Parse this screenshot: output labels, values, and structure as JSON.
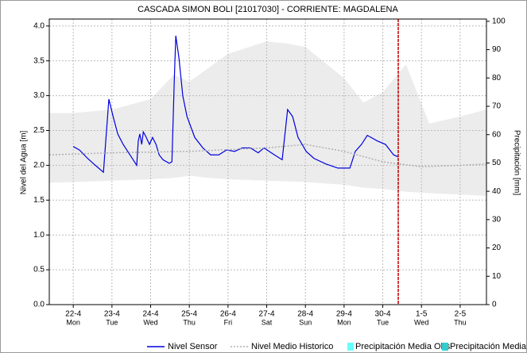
{
  "chart_data": {
    "type": "line",
    "title": "CASCADA SIMON BOLI [21017030] - CORRIENTE: MAGDALENA",
    "ylabel": "Nivel del Agua [m]",
    "y2label": "Precipitación [mm]",
    "xlim": [
      -0.62,
      10.68
    ],
    "xticks": [
      {
        "value": 0,
        "label": "22-4"
      },
      {
        "value": 1,
        "label": "23-4"
      },
      {
        "value": 2,
        "label": "24-4"
      },
      {
        "value": 3,
        "label": "25-4"
      },
      {
        "value": 4,
        "label": "26-4"
      },
      {
        "value": 5,
        "label": "27-4"
      },
      {
        "value": 6,
        "label": "28-4"
      },
      {
        "value": 7,
        "label": "29-4"
      },
      {
        "value": 8,
        "label": "30-4"
      },
      {
        "value": 9,
        "label": "1-5"
      },
      {
        "value": 10,
        "label": "2-5"
      }
    ],
    "xtick_days": [
      "Mon",
      "Tue",
      "Wed",
      "Thu",
      "Fri",
      "Sat",
      "Sun",
      "Mon",
      "Tue",
      "Wed",
      "Thu"
    ],
    "ylim": [
      0,
      4.1
    ],
    "yticks": [
      {
        "value": 0,
        "label": "0.0"
      },
      0.5,
      {
        "value": 1,
        "label": "1.0"
      },
      1.5,
      {
        "value": 2,
        "label": "2.0"
      },
      2.5,
      {
        "value": 3,
        "label": "3.0"
      },
      3.5,
      {
        "value": 4,
        "label": "4.0"
      }
    ],
    "y2lim": [
      0,
      100.8
    ],
    "y2ticks": [
      0,
      10,
      20,
      30,
      40,
      50,
      60,
      70,
      80,
      90,
      100
    ],
    "grid": true,
    "marker_x": 8.4,
    "marker_color": "#c00000",
    "band": {
      "color": "#ececec",
      "x": [
        -0.62,
        0,
        1,
        2,
        2.6,
        3,
        3.5,
        4,
        5,
        5.5,
        6,
        7,
        7.5,
        8,
        8.6,
        9.2,
        10,
        10.68
      ],
      "upper": [
        2.75,
        2.75,
        2.8,
        2.95,
        3.3,
        3.2,
        3.4,
        3.6,
        3.78,
        3.75,
        3.7,
        3.25,
        2.9,
        3.05,
        3.45,
        2.6,
        2.7,
        2.8
      ],
      "lower": [
        1.75,
        1.76,
        1.78,
        1.8,
        1.82,
        1.85,
        1.82,
        1.8,
        1.78,
        1.77,
        1.76,
        1.72,
        1.68,
        1.66,
        1.62,
        1.6,
        1.58,
        1.56
      ]
    },
    "series": [
      {
        "name": "Nivel Sensor",
        "color": "#0000dd",
        "style": "solid",
        "x": [
          0,
          0.16,
          0.37,
          0.57,
          0.78,
          0.82,
          0.92,
          1.03,
          1.15,
          1.29,
          1.5,
          1.64,
          1.68,
          1.72,
          1.77,
          1.81,
          1.87,
          1.97,
          2.05,
          2.14,
          2.22,
          2.32,
          2.48,
          2.55,
          2.61,
          2.65,
          2.73,
          2.83,
          2.94,
          3.14,
          3.35,
          3.55,
          3.76,
          3.96,
          4.17,
          4.37,
          4.58,
          4.78,
          4.93,
          5.2,
          5.4,
          5.54,
          5.67,
          5.81,
          6.02,
          6.22,
          6.53,
          6.84,
          7.15,
          7.29,
          7.45,
          7.6,
          7.86,
          8.07,
          8.28,
          8.4
        ],
        "values": [
          2.27,
          2.22,
          2.1,
          2,
          1.9,
          2.2,
          2.95,
          2.7,
          2.45,
          2.3,
          2.12,
          2,
          2.35,
          2.45,
          2.3,
          2.48,
          2.42,
          2.3,
          2.4,
          2.3,
          2.15,
          2.08,
          2.03,
          2.05,
          3.2,
          3.86,
          3.55,
          3,
          2.7,
          2.4,
          2.25,
          2.15,
          2.15,
          2.22,
          2.2,
          2.25,
          2.25,
          2.18,
          2.25,
          2.15,
          2.08,
          2.8,
          2.7,
          2.4,
          2.2,
          2.1,
          2.02,
          1.96,
          1.96,
          2.2,
          2.3,
          2.43,
          2.35,
          2.3,
          2.15,
          2.12
        ]
      },
      {
        "name": "Nivel Medio Historico",
        "color": "#b0b0b0",
        "style": "dotted",
        "x": [
          -0.62,
          1,
          3,
          5,
          6,
          7,
          8,
          9,
          10,
          10.68
        ],
        "values": [
          2.15,
          2.18,
          2.2,
          2.25,
          2.3,
          2.2,
          2.05,
          1.98,
          2,
          2.02
        ]
      },
      {
        "name": "Precipitación Media Obs",
        "color": "#66ffff",
        "style": "bar",
        "axis": "y2",
        "x": [],
        "values": []
      },
      {
        "name": "Precipitación Media Pro",
        "color": "#33cccc",
        "style": "bar",
        "axis": "y2",
        "x": [],
        "values": []
      }
    ]
  }
}
